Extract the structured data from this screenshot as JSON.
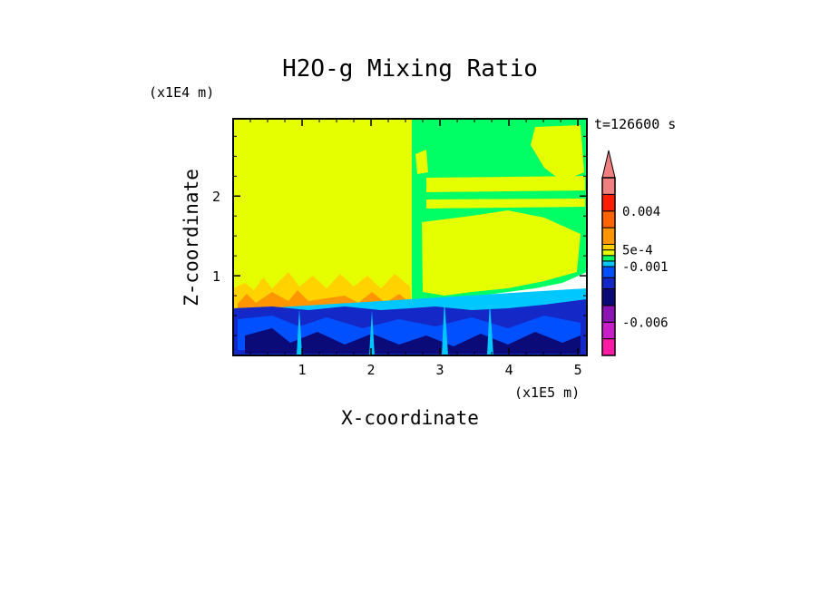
{
  "chart_data": {
    "type": "heatmap",
    "title": "H2O-g Mixing Ratio",
    "time_label": "t=126600 s",
    "xlabel": "X-coordinate",
    "ylabel": "Z-coordinate",
    "x_scale_label": "(x1E5 m)",
    "y_scale_label": "(x1E4 m)",
    "xlim": [
      0,
      5.13
    ],
    "ylim": [
      0,
      2.97
    ],
    "x_ticks": [
      1,
      2,
      3,
      4,
      5
    ],
    "x_tick_labels": [
      "1",
      "2",
      "3",
      "4",
      "5"
    ],
    "y_ticks": [
      1,
      2
    ],
    "y_tick_labels": [
      "1",
      "2"
    ],
    "grid": false,
    "colorbar": {
      "levels": [
        -0.009,
        -0.0075,
        -0.006,
        -0.0045,
        -0.003,
        -0.002,
        -0.001,
        -0.0005,
        0,
        0.0005,
        0.001,
        0.0025,
        0.004,
        0.0055,
        0.007
      ],
      "colors": [
        "#ff1aa5",
        "#c81ec8",
        "#8c14b4",
        "#0a0a78",
        "#1428c8",
        "#0050ff",
        "#00c8ff",
        "#00ff64",
        "#e6ff00",
        "#ffd200",
        "#ff9600",
        "#ff6400",
        "#ff1e00",
        "#f08080"
      ],
      "extend": "max",
      "tick_labels": [
        "0.004",
        "5e-4",
        "-0.001",
        "-0.006"
      ],
      "tick_values": [
        0.004,
        0.0005,
        -0.001,
        -0.006
      ]
    }
  }
}
